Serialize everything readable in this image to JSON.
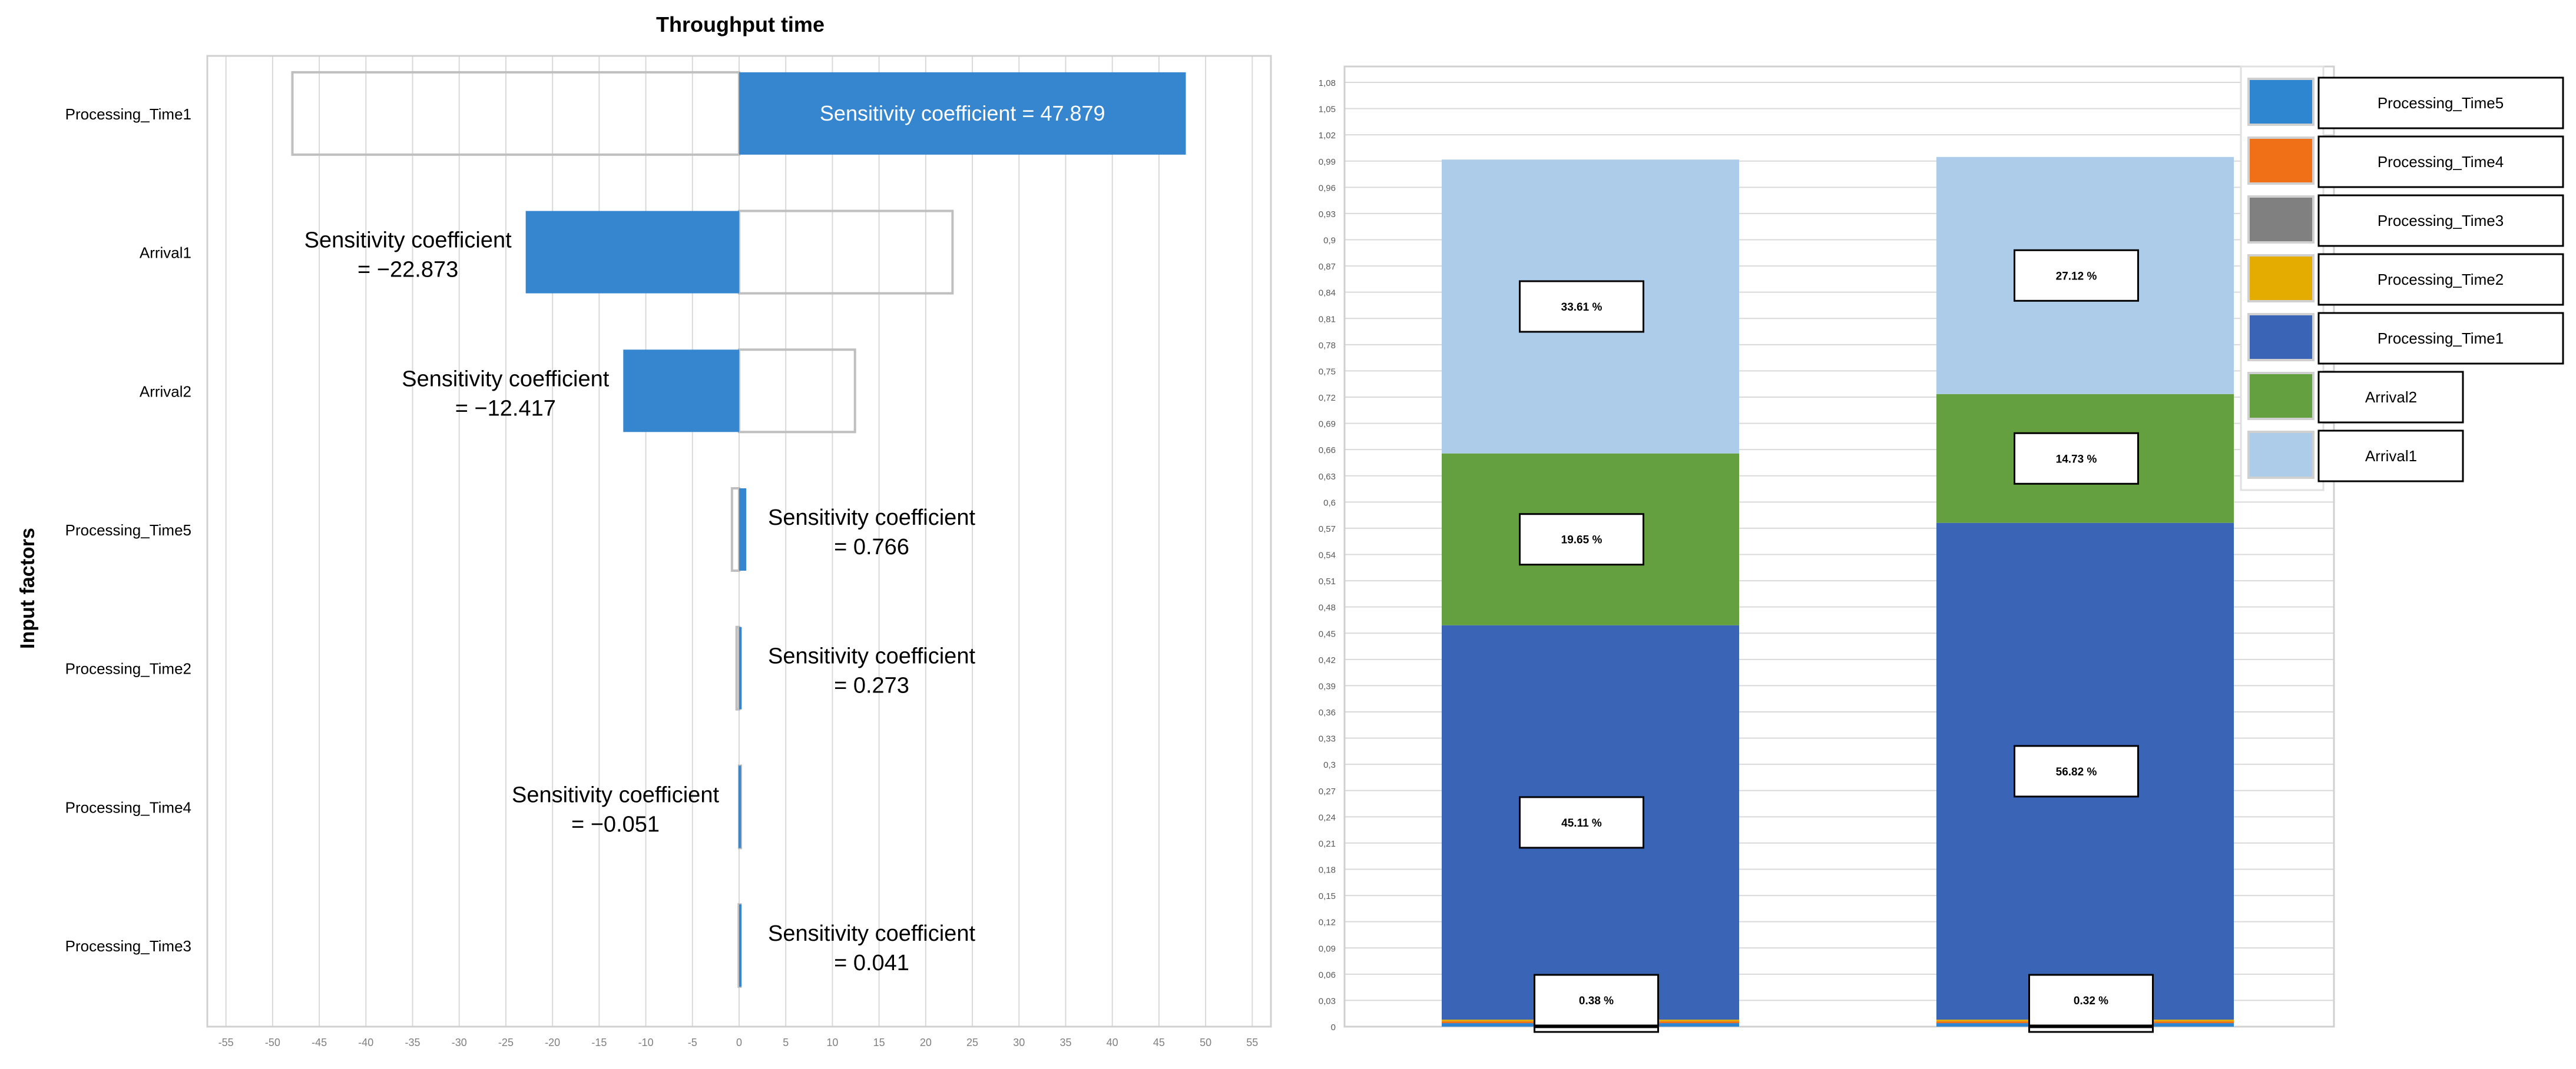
{
  "chart_data": [
    {
      "type": "bar",
      "orientation": "horizontal",
      "title": "Throughput time",
      "ylabel": "Input factors",
      "xlim": [
        -57,
        57
      ],
      "xticks": [
        -55,
        -50,
        -45,
        -40,
        -35,
        -30,
        -25,
        -20,
        -15,
        -10,
        -5,
        0,
        5,
        10,
        15,
        20,
        25,
        30,
        35,
        40,
        45,
        50,
        55
      ],
      "categories": [
        "Processing_Time1",
        "Arrival1",
        "Arrival2",
        "Processing_Time5",
        "Processing_Time2",
        "Processing_Time4",
        "Processing_Time3"
      ],
      "values": [
        47.879,
        -22.873,
        -12.417,
        0.766,
        0.273,
        -0.051,
        0.041
      ],
      "label_line1": "Sensitivity coefficient",
      "labels": [
        "Sensitivity coefficient = 47.879",
        "= −22.873",
        "= −12.417",
        "= 0.766",
        "= 0.273",
        "= −0.051",
        "= 0.041"
      ],
      "bar_color": "#3585CF",
      "outline_color": "#BFBFBF"
    },
    {
      "type": "stacked_bar",
      "ylim": [
        0,
        1.08
      ],
      "yticks": [
        "0",
        "0,03",
        "0,06",
        "0,09",
        "0,12",
        "0,15",
        "0,18",
        "0,21",
        "0,24",
        "0,27",
        "0,3",
        "0,33",
        "0,36",
        "0,39",
        "0,42",
        "0,45",
        "0,48",
        "0,51",
        "0,54",
        "0,57",
        "0,6",
        "0,63",
        "0,66",
        "0,69",
        "0,72",
        "0,75",
        "0,78",
        "0,81",
        "0,84",
        "0,87",
        "0,9",
        "0,93",
        "0,96",
        "0,99",
        "1,02",
        "1,05",
        "1,08"
      ],
      "series": [
        {
          "name": "Processing_Time5",
          "color": "#2E86D0",
          "values": [
            0.0,
            0.0
          ]
        },
        {
          "name": "Processing_Time4",
          "color": "#F07017",
          "values": [
            0.0,
            0.0
          ]
        },
        {
          "name": "Processing_Time3",
          "color": "#808080",
          "values": [
            0.0,
            0.0
          ]
        },
        {
          "name": "Processing_Time2",
          "color": "#E5AC00",
          "values": [
            0.0,
            0.0
          ]
        },
        {
          "name": "Processing_Time1",
          "color": "#3A65B6",
          "values": [
            0.4511,
            0.5682
          ]
        },
        {
          "name": "Arrival2",
          "color": "#64A03F",
          "values": [
            0.1965,
            0.1473
          ]
        },
        {
          "name": "Arrival1",
          "color": "#ADCCEA",
          "values": [
            0.3361,
            0.2712
          ]
        }
      ],
      "stack_order": [
        "Processing_Time5",
        "Processing_Time4",
        "Processing_Time3",
        "Processing_Time2",
        "Processing_Time1",
        "Arrival2",
        "Arrival1"
      ],
      "bar_labels": [
        [
          "0.38 %",
          "45.11 %",
          "19.65 %",
          "33.61 %"
        ],
        [
          "0.32 %",
          "56.82 %",
          "14.73 %",
          "27.12 %"
        ]
      ],
      "legend": [
        "Processing_Time5",
        "Processing_Time4",
        "Processing_Time3",
        "Processing_Time2",
        "Processing_Time1",
        "Arrival2",
        "Arrival1"
      ]
    }
  ]
}
